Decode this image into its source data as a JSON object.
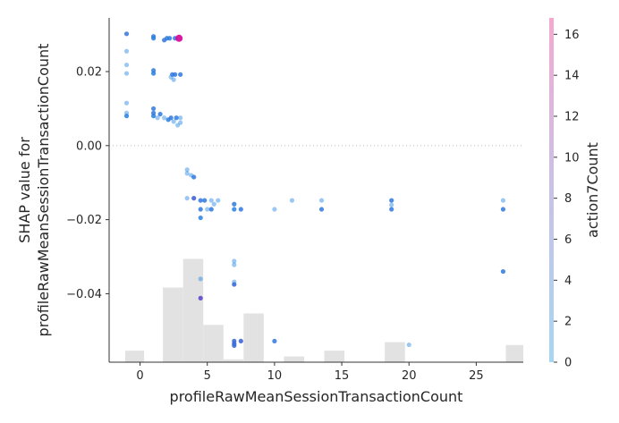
{
  "chart_data": {
    "type": "scatter",
    "title": "",
    "xlabel": "profileRawMeanSessionTransactionCount",
    "ylabel_lines": [
      "SHAP value for",
      "profileRawMeanSessionTransactionCount"
    ],
    "colorbar_label": "action7Count",
    "xlim": [
      -2.3,
      28.5
    ],
    "ylim": [
      -0.0585,
      0.0345
    ],
    "xticks": [
      0,
      5,
      10,
      15,
      20,
      25
    ],
    "yticks": [
      -0.04,
      -0.02,
      0.0,
      0.02
    ],
    "ytick_labels": [
      "−0.04",
      "−0.02",
      "0.00",
      "0.02"
    ],
    "colorbar_range": [
      0,
      16.8
    ],
    "colorbar_ticks": [
      0,
      2,
      4,
      6,
      8,
      10,
      12,
      14,
      16
    ],
    "colors": {
      "low": "#a6d6f2",
      "mid": "#c9c2e6",
      "high": "#f5a8d0"
    },
    "histogram": {
      "bin_edges": [
        -1.1,
        0.3,
        1.7,
        3.2,
        4.7,
        6.2,
        7.7,
        9.2,
        10.7,
        12.2,
        13.7,
        15.2,
        16.7,
        18.2,
        19.7,
        21.2,
        22.7,
        24.2,
        25.7,
        27.2,
        28.5
      ],
      "counts": [
        4,
        0,
        26,
        36,
        13,
        1,
        17,
        0,
        2,
        0,
        4,
        0,
        0,
        7,
        0,
        0,
        0,
        0,
        0,
        6
      ]
    },
    "zero_line": true,
    "points": [
      {
        "x": -1,
        "y": 0.0302,
        "c": 2.5
      },
      {
        "x": -1,
        "y": 0.0255,
        "c": 0.5
      },
      {
        "x": -1,
        "y": 0.0218,
        "c": 0.5
      },
      {
        "x": -1,
        "y": 0.0195,
        "c": 0.5
      },
      {
        "x": -1,
        "y": 0.0115,
        "c": 0.5
      },
      {
        "x": -1,
        "y": 0.0088,
        "c": 0.5
      },
      {
        "x": -1,
        "y": 0.008,
        "c": 1.0
      },
      {
        "x": 1,
        "y": 0.0295,
        "c": 2.0
      },
      {
        "x": 1,
        "y": 0.029,
        "c": 1.0
      },
      {
        "x": 1,
        "y": 0.0203,
        "c": 2.0
      },
      {
        "x": 1,
        "y": 0.0195,
        "c": 1.0
      },
      {
        "x": 1,
        "y": 0.01,
        "c": 2.0
      },
      {
        "x": 1,
        "y": 0.0088,
        "c": 2.0
      },
      {
        "x": 1,
        "y": 0.008,
        "c": 1.5
      },
      {
        "x": 1.3,
        "y": 0.0075,
        "c": 0.5
      },
      {
        "x": 1.5,
        "y": 0.0085,
        "c": 2.0
      },
      {
        "x": 1.8,
        "y": 0.0075,
        "c": 0.5
      },
      {
        "x": 1.8,
        "y": 0.0285,
        "c": 2.2
      },
      {
        "x": 2.0,
        "y": 0.029,
        "c": 2.0
      },
      {
        "x": 2.1,
        "y": 0.007,
        "c": 1.5
      },
      {
        "x": 2.2,
        "y": 0.029,
        "c": 1.5
      },
      {
        "x": 2.3,
        "y": 0.0185,
        "c": 0.5
      },
      {
        "x": 2.3,
        "y": 0.0075,
        "c": 2.0
      },
      {
        "x": 2.4,
        "y": 0.0192,
        "c": 2.0
      },
      {
        "x": 2.5,
        "y": 0.0178,
        "c": 0.5
      },
      {
        "x": 2.5,
        "y": 0.0065,
        "c": 0.5
      },
      {
        "x": 2.6,
        "y": 0.029,
        "c": 2.0
      },
      {
        "x": 2.6,
        "y": 0.0192,
        "c": 2.0
      },
      {
        "x": 2.7,
        "y": 0.0075,
        "c": 1.5
      },
      {
        "x": 2.8,
        "y": 0.0055,
        "c": 0.5
      },
      {
        "x": 2.9,
        "y": 0.029,
        "c": 16.0
      },
      {
        "x": 3.0,
        "y": 0.0192,
        "c": 2.0
      },
      {
        "x": 3.0,
        "y": 0.0075,
        "c": 0.5
      },
      {
        "x": 3.0,
        "y": 0.0062,
        "c": 0.5
      },
      {
        "x": 3.5,
        "y": -0.0065,
        "c": 0.5
      },
      {
        "x": 3.5,
        "y": -0.0075,
        "c": 0.5
      },
      {
        "x": 3.5,
        "y": -0.0142,
        "c": 0.5
      },
      {
        "x": 3.8,
        "y": -0.008,
        "c": 0.5
      },
      {
        "x": 4.0,
        "y": -0.0085,
        "c": 2.0
      },
      {
        "x": 4.0,
        "y": -0.0142,
        "c": 4.5
      },
      {
        "x": 4.5,
        "y": -0.0148,
        "c": 2.0
      },
      {
        "x": 4.5,
        "y": -0.0172,
        "c": 2.0
      },
      {
        "x": 4.5,
        "y": -0.0195,
        "c": 1.0
      },
      {
        "x": 4.5,
        "y": -0.036,
        "c": 0.5
      },
      {
        "x": 4.5,
        "y": -0.0412,
        "c": 7.5
      },
      {
        "x": 4.8,
        "y": -0.0148,
        "c": 2.0
      },
      {
        "x": 5.0,
        "y": -0.0172,
        "c": 0.5
      },
      {
        "x": 5.3,
        "y": -0.0148,
        "c": 0.5
      },
      {
        "x": 5.3,
        "y": -0.0172,
        "c": 2.0
      },
      {
        "x": 5.5,
        "y": -0.0158,
        "c": 0.5
      },
      {
        "x": 5.8,
        "y": -0.0148,
        "c": 0.5
      },
      {
        "x": 7,
        "y": -0.0158,
        "c": 2.0
      },
      {
        "x": 7,
        "y": -0.0172,
        "c": 1.0
      },
      {
        "x": 7,
        "y": -0.0312,
        "c": 0.5
      },
      {
        "x": 7,
        "y": -0.0322,
        "c": 0.5
      },
      {
        "x": 7,
        "y": -0.0368,
        "c": 0.5
      },
      {
        "x": 7,
        "y": -0.0375,
        "c": 3.5
      },
      {
        "x": 7,
        "y": -0.0528,
        "c": 3.5
      },
      {
        "x": 7,
        "y": -0.0535,
        "c": 3.8
      },
      {
        "x": 7,
        "y": -0.054,
        "c": 3.2
      },
      {
        "x": 7.5,
        "y": -0.0172,
        "c": 2.0
      },
      {
        "x": 7.5,
        "y": -0.0528,
        "c": 4.0
      },
      {
        "x": 10,
        "y": -0.0172,
        "c": 0.5
      },
      {
        "x": 10,
        "y": -0.0528,
        "c": 2.0
      },
      {
        "x": 11.3,
        "y": -0.0148,
        "c": 0.5
      },
      {
        "x": 13.5,
        "y": -0.0148,
        "c": 0.5
      },
      {
        "x": 13.5,
        "y": -0.0172,
        "c": 2.0
      },
      {
        "x": 18.7,
        "y": -0.0148,
        "c": 2.0
      },
      {
        "x": 18.7,
        "y": -0.016,
        "c": 0.5
      },
      {
        "x": 18.7,
        "y": -0.0172,
        "c": 2.0
      },
      {
        "x": 20,
        "y": -0.0538,
        "c": 0.5
      },
      {
        "x": 27,
        "y": -0.0148,
        "c": 0.5
      },
      {
        "x": 27,
        "y": -0.0172,
        "c": 2.0
      },
      {
        "x": 27,
        "y": -0.034,
        "c": 2.0
      }
    ]
  }
}
